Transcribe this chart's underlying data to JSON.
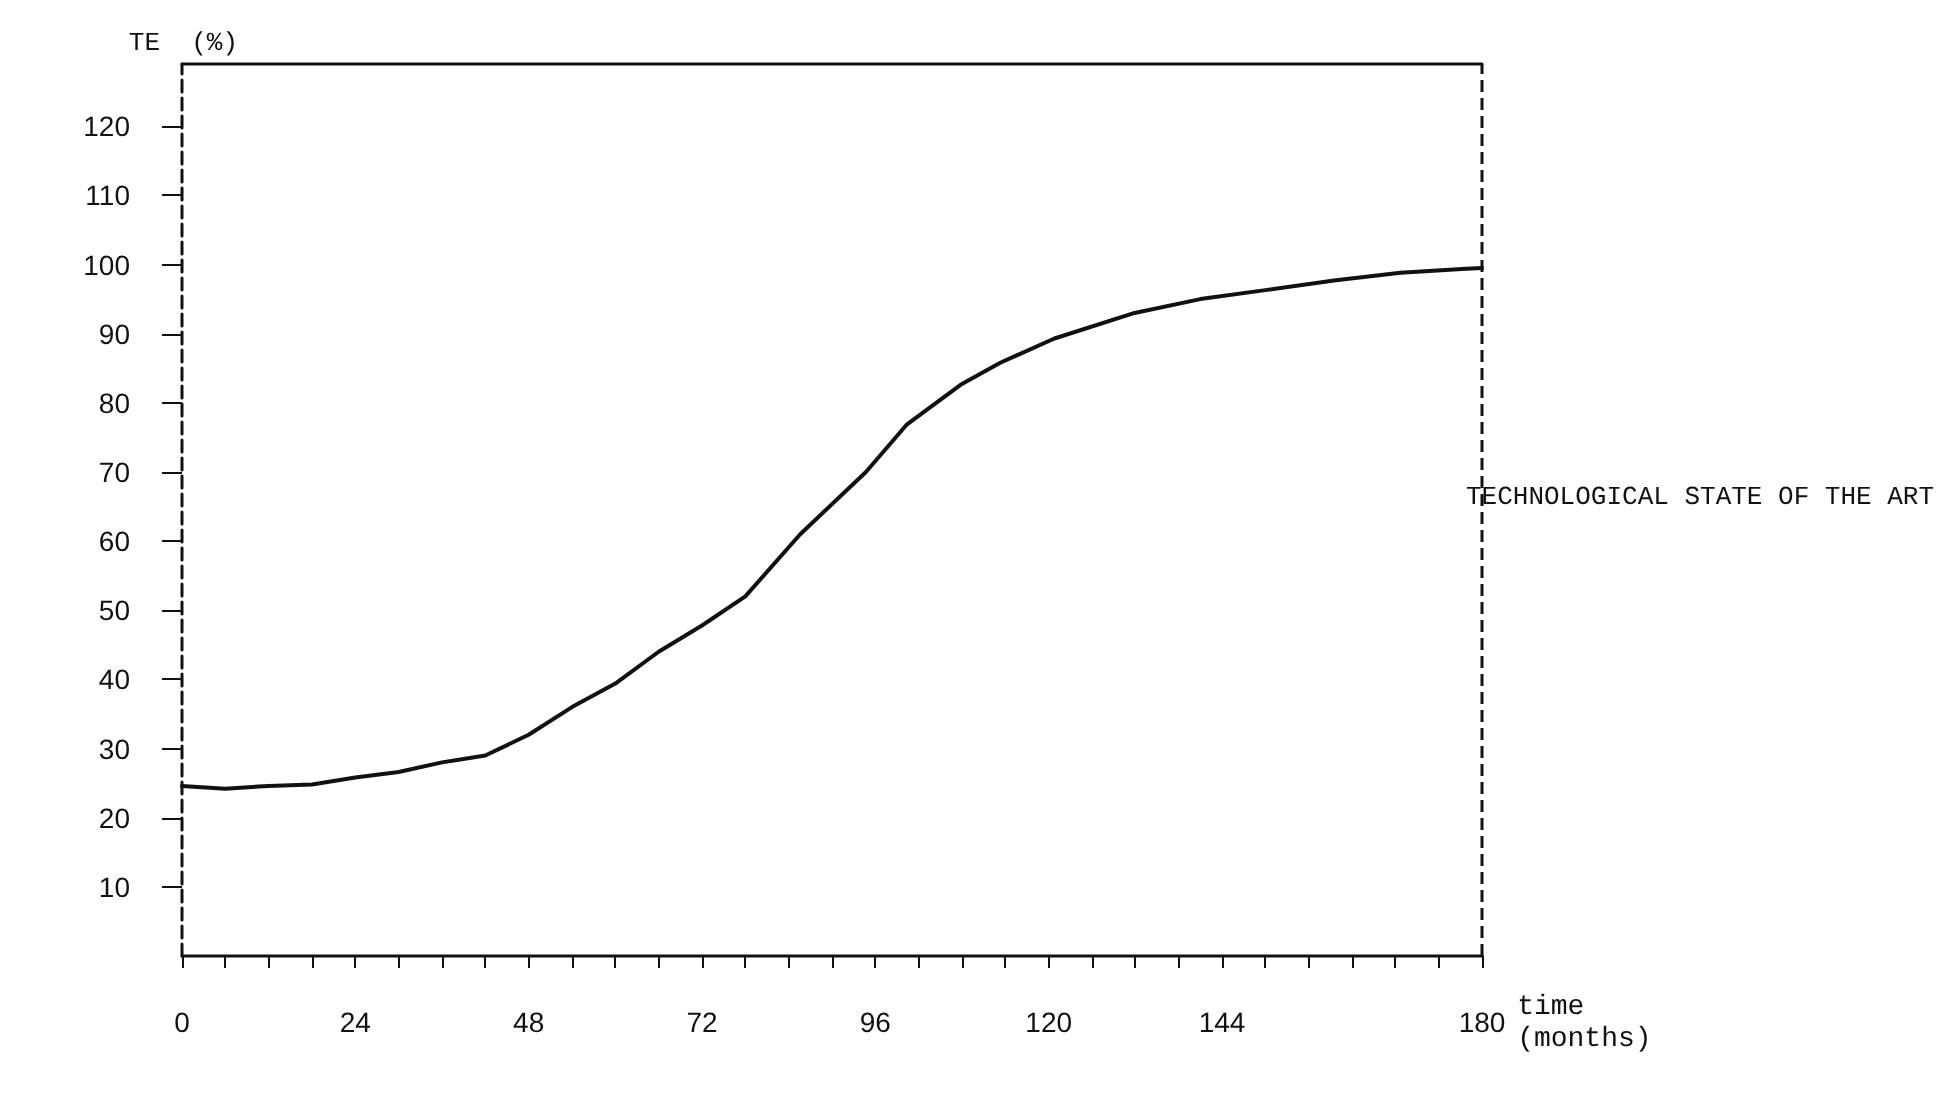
{
  "chart_data": {
    "type": "line",
    "xlabel": "time\n(months)",
    "ylabel": "TE  (%)",
    "x": [
      0,
      6,
      12,
      18,
      24,
      30,
      36,
      42,
      48,
      54,
      60,
      66,
      72,
      78,
      85.6,
      94.7,
      100.3,
      107.8,
      113.3,
      120.8,
      131.9,
      141,
      150,
      159.5,
      168.7,
      177.8,
      180
    ],
    "series": [
      {
        "color": "#111111",
        "values": [
          24.6,
          24.2,
          24.6,
          24.8,
          25.8,
          26.6,
          28,
          29,
          32,
          36,
          39.4,
          44,
          47.8,
          52,
          61,
          70,
          76.8,
          82.6,
          85.8,
          89.3,
          93,
          95,
          96.3,
          97.7,
          98.8,
          99.4,
          99.5
        ]
      }
    ],
    "xlim": [
      0,
      180
    ],
    "xticks": [
      0,
      {
        "value": 6,
        "label": null
      },
      {
        "value": 12,
        "label": null
      },
      {
        "value": 18,
        "label": null
      },
      24,
      {
        "value": 30,
        "label": null
      },
      {
        "value": 36,
        "label": null
      },
      {
        "value": 42,
        "label": null
      },
      48,
      {
        "value": 54,
        "label": null
      },
      {
        "value": 60,
        "label": null
      },
      {
        "value": 66,
        "label": null
      },
      72,
      {
        "value": 78,
        "label": null
      },
      {
        "value": 84,
        "label": null
      },
      {
        "value": 90,
        "label": null
      },
      96,
      {
        "value": 102,
        "label": null
      },
      {
        "value": 108,
        "label": null
      },
      {
        "value": 114,
        "label": null
      },
      120,
      {
        "value": 126,
        "label": null
      },
      {
        "value": 132,
        "label": null
      },
      {
        "value": 138,
        "label": null
      },
      144,
      {
        "value": 150,
        "label": null
      },
      {
        "value": 156,
        "label": null
      },
      {
        "value": 162,
        "label": null
      },
      {
        "value": 168,
        "label": null
      },
      {
        "value": 174,
        "label": null
      },
      180
    ],
    "ylim": [
      0,
      129
    ],
    "yticks": [
      10,
      20,
      30,
      40,
      50,
      60,
      70,
      80,
      90,
      100,
      110,
      120
    ],
    "ref_lines": [
      {
        "axis": "x",
        "value": 180,
        "label": "TECHNOLOGICAL STATE OF THE ART",
        "color": "#111111",
        "line_style": "dashed"
      }
    ],
    "grid": false,
    "marker": "none",
    "line_style": "solid"
  }
}
